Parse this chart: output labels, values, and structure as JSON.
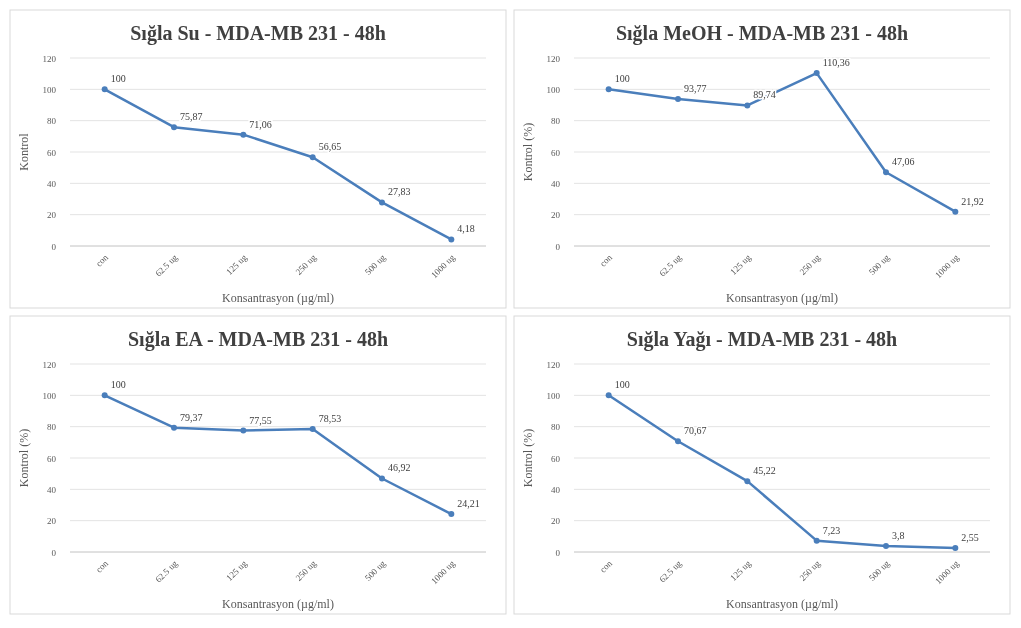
{
  "chart_data": [
    {
      "type": "line",
      "title": "Sığla Su - MDA-MB 231 - 48h",
      "xlabel": "Konsantrasyon (µg/ml)",
      "ylabel": "Kontrol",
      "categories": [
        "con",
        "62.5 ug",
        "125 ug",
        "250 ug",
        "500 ug",
        "1000 ug"
      ],
      "series": [
        {
          "color": "#4a7ebb",
          "values": [
            100,
            75.87,
            71.06,
            56.65,
            27.83,
            4.18
          ],
          "value_labels": [
            "100",
            "75,87",
            "71,06",
            "56,65",
            "27,83",
            "4,18"
          ]
        }
      ],
      "ylim": [
        0,
        120
      ],
      "yticks": [
        0,
        20,
        40,
        60,
        80,
        100,
        120
      ],
      "grid": "y",
      "marker": "circle",
      "line_style": "solid"
    },
    {
      "type": "line",
      "title": "Sığla MeOH - MDA-MB 231 - 48h",
      "xlabel": "Konsantrasyon (µg/ml)",
      "ylabel": "Kontrol (%)",
      "categories": [
        "con",
        "62.5 ug",
        "125 ug",
        "250 ug",
        "500 ug",
        "1000 ug"
      ],
      "series": [
        {
          "color": "#4a7ebb",
          "values": [
            100,
            93.77,
            89.74,
            110.36,
            47.06,
            21.92
          ],
          "value_labels": [
            "100",
            "93,77",
            "89,74",
            "110,36",
            "47,06",
            "21,92"
          ]
        }
      ],
      "ylim": [
        0,
        120
      ],
      "yticks": [
        0,
        20,
        40,
        60,
        80,
        100,
        120
      ],
      "grid": "y",
      "marker": "circle",
      "line_style": "solid"
    },
    {
      "type": "line",
      "title": "Sığla EA - MDA-MB 231 - 48h",
      "xlabel": "Konsantrasyon (µg/ml)",
      "ylabel": "Kontrol (%)",
      "categories": [
        "con",
        "62.5 ug",
        "125 ug",
        "250 ug",
        "500 ug",
        "1000 ug"
      ],
      "series": [
        {
          "color": "#4a7ebb",
          "values": [
            100,
            79.37,
            77.55,
            78.53,
            46.92,
            24.21
          ],
          "value_labels": [
            "100",
            "79,37",
            "77,55",
            "78,53",
            "46,92",
            "24,21"
          ]
        }
      ],
      "ylim": [
        0,
        120
      ],
      "yticks": [
        0,
        20,
        40,
        60,
        80,
        100,
        120
      ],
      "grid": "y",
      "marker": "circle",
      "line_style": "solid"
    },
    {
      "type": "line",
      "title": "Sığla Yağı - MDA-MB 231 - 48h",
      "xlabel": "Konsantrasyon (µg/ml)",
      "ylabel": "Kontrol (%)",
      "categories": [
        "con",
        "62.5 ug",
        "125 ug",
        "250 ug",
        "500 ug",
        "1000 ug"
      ],
      "series": [
        {
          "color": "#4a7ebb",
          "values": [
            100,
            70.67,
            45.22,
            7.23,
            3.8,
            2.55
          ],
          "value_labels": [
            "100",
            "70,67",
            "45,22",
            "7,23",
            "3,8",
            "2,55"
          ]
        }
      ],
      "ylim": [
        0,
        120
      ],
      "yticks": [
        0,
        20,
        40,
        60,
        80,
        100,
        120
      ],
      "grid": "y",
      "marker": "circle",
      "line_style": "solid"
    }
  ]
}
